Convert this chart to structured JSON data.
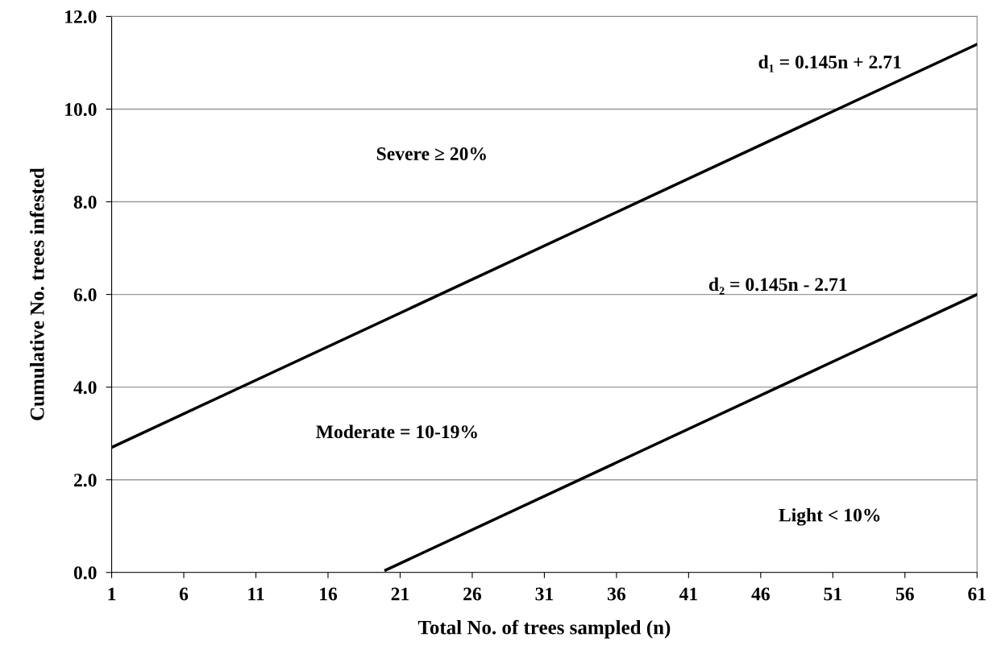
{
  "chart_data": {
    "type": "line",
    "xlabel": "Total No. of trees sampled (n)",
    "ylabel": "Cumulative No. trees infested",
    "series": [
      {
        "color": "#000000",
        "x": [
          1,
          61
        ],
        "values": [
          2.7,
          11.4
        ]
      },
      {
        "color": "#000000",
        "x": [
          20,
          61
        ],
        "values": [
          0.05,
          6.0
        ]
      }
    ],
    "xlim": [
      1,
      61
    ],
    "xticks": [
      1,
      6,
      11,
      16,
      21,
      26,
      31,
      36,
      41,
      46,
      51,
      56,
      61
    ],
    "ylim": [
      0,
      12
    ],
    "yticks": [
      {
        "value": 0,
        "label": "0.0"
      },
      {
        "value": 2,
        "label": "2.0"
      },
      {
        "value": 4,
        "label": "4.0"
      },
      {
        "value": 6,
        "label": "6.0"
      },
      {
        "value": 8,
        "label": "8.0"
      },
      {
        "value": 10,
        "label": "10.0"
      },
      {
        "value": 12,
        "label": "12.0"
      }
    ],
    "grid": "y",
    "marker": "none",
    "line_style": "solid",
    "annotations": [
      "d₁ = 0.145n + 2.71",
      "Severe ≥ 20%",
      "d₂ = 0.145n - 2.71",
      "Moderate = 10-19%",
      "Light < 10%"
    ]
  }
}
